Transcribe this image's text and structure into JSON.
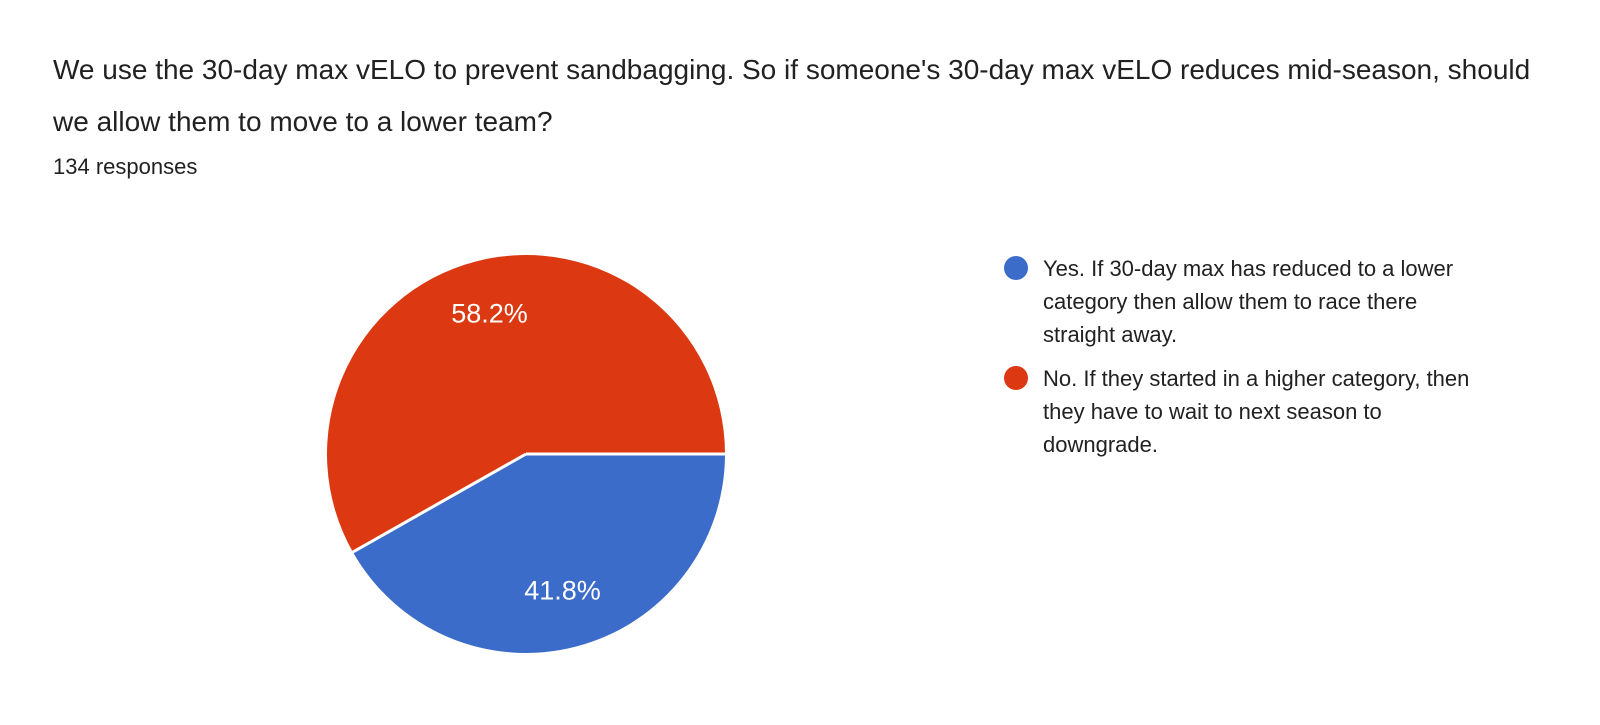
{
  "question": {
    "title": "We use the 30-day max vELO to prevent sandbagging.  So if someone's 30-day max vELO reduces mid-season, should we allow them to move to a lower team?",
    "responses_count": "134 responses"
  },
  "chart_data": {
    "type": "pie",
    "title": "We use the 30-day max vELO to prevent sandbagging.  So if someone's 30-day max vELO reduces mid-season, should we allow them to move to a lower team?",
    "subtitle": "134 responses",
    "legend_position": "right",
    "start_angle_deg": 0,
    "direction": "clockwise",
    "slice_label_color": "#ffffff",
    "separator_color": "#ffffff",
    "slices": [
      {
        "label": "Yes. If 30-day max has reduced to a lower category then allow them to race there straight away.",
        "percent": 41.8,
        "value_label": "41.8%",
        "color": "#3b6cc9"
      },
      {
        "label": "No. If they started in a higher category, then they have to wait to next season to downgrade.",
        "percent": 58.2,
        "value_label": "58.2%",
        "color": "#dc3912"
      }
    ]
  }
}
